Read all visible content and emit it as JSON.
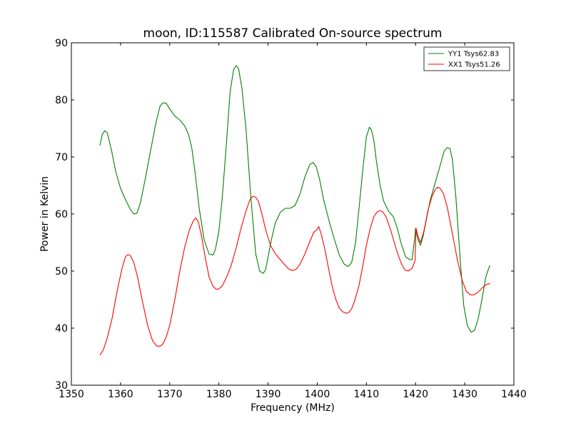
{
  "chart_data": {
    "type": "line",
    "title": "moon, ID:115587 Calibrated On-source spectrum",
    "xlabel": "Frequency (MHz)",
    "ylabel": "Power in Kelvin",
    "xlim": [
      1350,
      1440
    ],
    "ylim": [
      30,
      90
    ],
    "xticks": [
      1350,
      1360,
      1370,
      1380,
      1390,
      1400,
      1410,
      1420,
      1430,
      1440
    ],
    "yticks": [
      30,
      40,
      50,
      60,
      70,
      80,
      90
    ],
    "grid": false,
    "legend_position": "top-right",
    "series": [
      {
        "name": "YY1 Tsys62.83",
        "color": "#008000",
        "x": [
          1355.8,
          1356.3,
          1356.8,
          1357.3,
          1358.2,
          1359.0,
          1360.0,
          1361.0,
          1362.0,
          1362.7,
          1363.3,
          1364.0,
          1365.0,
          1366.2,
          1367.2,
          1368.0,
          1368.6,
          1369.3,
          1370.0,
          1371.0,
          1372.0,
          1373.0,
          1373.8,
          1374.5,
          1375.2,
          1376.0,
          1377.0,
          1378.0,
          1378.8,
          1379.3,
          1380.0,
          1380.7,
          1381.5,
          1382.3,
          1383.0,
          1383.5,
          1384.0,
          1384.7,
          1385.5,
          1386.5,
          1387.5,
          1388.3,
          1389.0,
          1389.5,
          1390.0,
          1390.8,
          1391.5,
          1392.5,
          1393.5,
          1394.5,
          1395.5,
          1396.5,
          1397.5,
          1398.5,
          1399.2,
          1399.8,
          1400.5,
          1401.3,
          1402.5,
          1403.5,
          1404.5,
          1405.5,
          1406.3,
          1407.0,
          1407.8,
          1408.5,
          1409.3,
          1410.0,
          1410.6,
          1411.0,
          1411.5,
          1412.0,
          1412.8,
          1413.5,
          1414.5,
          1415.5,
          1416.3,
          1417.0,
          1418.0,
          1418.8,
          1419.3,
          1419.8,
          1420.0,
          1420.5,
          1421.0,
          1421.5,
          1422.3,
          1423.0,
          1424.0,
          1425.0,
          1425.8,
          1426.4,
          1427.0,
          1427.5,
          1428.2,
          1429.0,
          1429.8,
          1430.5,
          1431.3,
          1432.0,
          1432.7,
          1433.5,
          1434.3,
          1435.1
        ],
        "y": [
          72.0,
          74.0,
          74.6,
          74.2,
          71.0,
          67.5,
          64.5,
          62.5,
          60.8,
          60.0,
          60.1,
          61.8,
          66.0,
          71.5,
          76.0,
          78.8,
          79.5,
          79.4,
          78.4,
          77.2,
          76.5,
          75.5,
          74.0,
          71.5,
          67.0,
          61.0,
          55.5,
          53.0,
          52.8,
          53.8,
          57.0,
          63.0,
          72.0,
          81.5,
          85.3,
          86.0,
          85.5,
          82.0,
          75.0,
          63.0,
          53.0,
          50.0,
          49.6,
          50.2,
          52.5,
          56.0,
          58.5,
          60.3,
          61.0,
          61.0,
          61.5,
          63.5,
          66.5,
          68.7,
          69.0,
          68.3,
          66.0,
          62.5,
          58.5,
          55.5,
          52.8,
          51.2,
          50.8,
          51.5,
          55.0,
          61.0,
          68.0,
          73.5,
          75.2,
          74.8,
          73.0,
          69.5,
          65.0,
          62.3,
          60.5,
          59.5,
          57.5,
          55.0,
          52.5,
          52.0,
          52.0,
          55.5,
          57.5,
          55.5,
          54.5,
          56.0,
          59.5,
          62.5,
          65.5,
          68.5,
          71.0,
          71.6,
          71.5,
          69.5,
          63.0,
          53.0,
          44.0,
          40.5,
          39.3,
          39.6,
          41.5,
          45.0,
          49.0,
          51.0
        ]
      },
      {
        "name": "XX1 Tsys51.26",
        "color": "#ff0000",
        "x": [
          1355.8,
          1356.5,
          1357.3,
          1358.3,
          1359.3,
          1360.3,
          1361.0,
          1361.5,
          1362.0,
          1362.7,
          1363.5,
          1364.5,
          1365.5,
          1366.5,
          1367.3,
          1368.0,
          1368.6,
          1369.3,
          1370.0,
          1371.0,
          1372.0,
          1373.0,
          1374.0,
          1374.8,
          1375.3,
          1375.8,
          1376.5,
          1377.3,
          1378.0,
          1378.8,
          1379.5,
          1380.0,
          1380.6,
          1381.5,
          1382.5,
          1383.5,
          1384.5,
          1385.5,
          1386.3,
          1386.9,
          1387.4,
          1388.0,
          1388.7,
          1389.5,
          1390.5,
          1391.5,
          1392.5,
          1393.5,
          1394.3,
          1395.0,
          1395.7,
          1396.5,
          1397.5,
          1398.5,
          1399.3,
          1400.0,
          1400.3,
          1400.8,
          1401.5,
          1402.3,
          1403.0,
          1403.8,
          1404.5,
          1405.3,
          1406.0,
          1406.5,
          1407.0,
          1407.7,
          1408.5,
          1409.3,
          1410.0,
          1410.8,
          1411.5,
          1412.2,
          1412.8,
          1413.3,
          1414.0,
          1415.0,
          1416.0,
          1417.0,
          1417.8,
          1418.5,
          1419.3,
          1419.9,
          1420.1,
          1420.5,
          1421.0,
          1421.7,
          1422.5,
          1423.3,
          1424.0,
          1424.5,
          1425.0,
          1425.7,
          1426.5,
          1427.5,
          1428.5,
          1429.5,
          1430.3,
          1431.0,
          1431.5,
          1432.0,
          1432.7,
          1433.5,
          1434.3,
          1434.8,
          1435.2
        ],
        "y": [
          35.3,
          36.2,
          38.3,
          41.8,
          46.5,
          50.5,
          52.5,
          52.9,
          52.7,
          51.5,
          48.8,
          44.5,
          40.5,
          37.8,
          36.9,
          36.8,
          37.2,
          38.5,
          40.5,
          44.8,
          49.8,
          54.0,
          57.2,
          58.8,
          59.3,
          58.7,
          56.0,
          52.0,
          49.0,
          47.3,
          46.8,
          46.9,
          47.3,
          48.8,
          51.0,
          54.0,
          57.5,
          60.5,
          62.5,
          63.1,
          63.0,
          62.3,
          60.2,
          57.3,
          54.5,
          53.0,
          52.0,
          51.0,
          50.3,
          50.1,
          50.3,
          51.2,
          53.0,
          55.2,
          56.8,
          57.3,
          57.8,
          56.5,
          54.0,
          50.5,
          47.5,
          45.0,
          43.5,
          42.8,
          42.6,
          42.8,
          43.4,
          45.0,
          47.5,
          51.0,
          54.5,
          57.5,
          59.5,
          60.4,
          60.6,
          60.4,
          59.5,
          57.0,
          54.0,
          51.5,
          50.2,
          50.0,
          50.5,
          51.8,
          57.5,
          56.0,
          55.0,
          57.0,
          60.5,
          63.0,
          64.3,
          64.7,
          64.5,
          63.5,
          61.0,
          56.5,
          52.0,
          48.3,
          46.5,
          45.9,
          45.8,
          45.9,
          46.3,
          47.0,
          47.6,
          47.8,
          47.7
        ]
      }
    ]
  }
}
